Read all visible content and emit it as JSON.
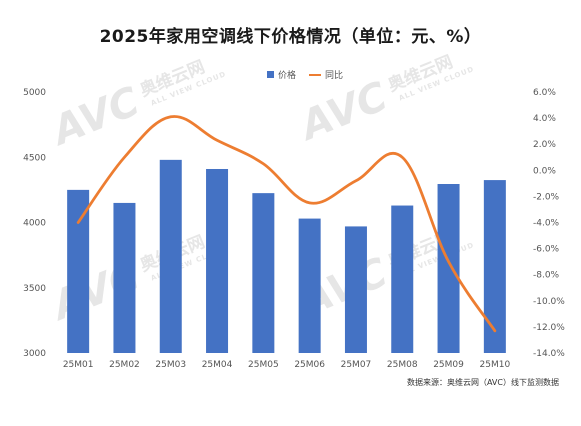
{
  "chart_data": {
    "type": "bar+line",
    "title": "2025年家用空调线下价格情况（单位：元、%）",
    "categories": [
      "25M01",
      "25M02",
      "25M03",
      "25M04",
      "25M05",
      "25M06",
      "25M07",
      "25M08",
      "25M09",
      "25M10"
    ],
    "series": [
      {
        "name": "价格",
        "type": "bar",
        "axis": "left",
        "color": "#4472C4",
        "values": [
          4250,
          4150,
          4480,
          4410,
          4225,
          4030,
          3970,
          4130,
          4295,
          4325
        ]
      },
      {
        "name": "同比",
        "type": "line",
        "axis": "right",
        "color": "#ED7D31",
        "values": [
          -4.0,
          1.0,
          4.1,
          2.3,
          0.5,
          -2.5,
          -0.8,
          1.0,
          -7.0,
          -12.3
        ]
      }
    ],
    "y_left": {
      "min": 3000,
      "max": 5000,
      "ticks": [
        "3000",
        "3500",
        "4000",
        "4500",
        "5000"
      ]
    },
    "y_right": {
      "min": -14,
      "max": 6,
      "ticks": [
        "-14.0%",
        "-12.0%",
        "-10.0%",
        "-8.0%",
        "-6.0%",
        "-4.0%",
        "-2.0%",
        "0.0%",
        "2.0%",
        "4.0%",
        "6.0%"
      ]
    },
    "legend_position": "top-right",
    "grid": false
  },
  "source_note": "数据来源：奥维云网（AVC）线下监测数据",
  "watermark": {
    "logo": "AVC",
    "cn": "奥维云网",
    "en": "ALL VIEW CLOUD"
  }
}
